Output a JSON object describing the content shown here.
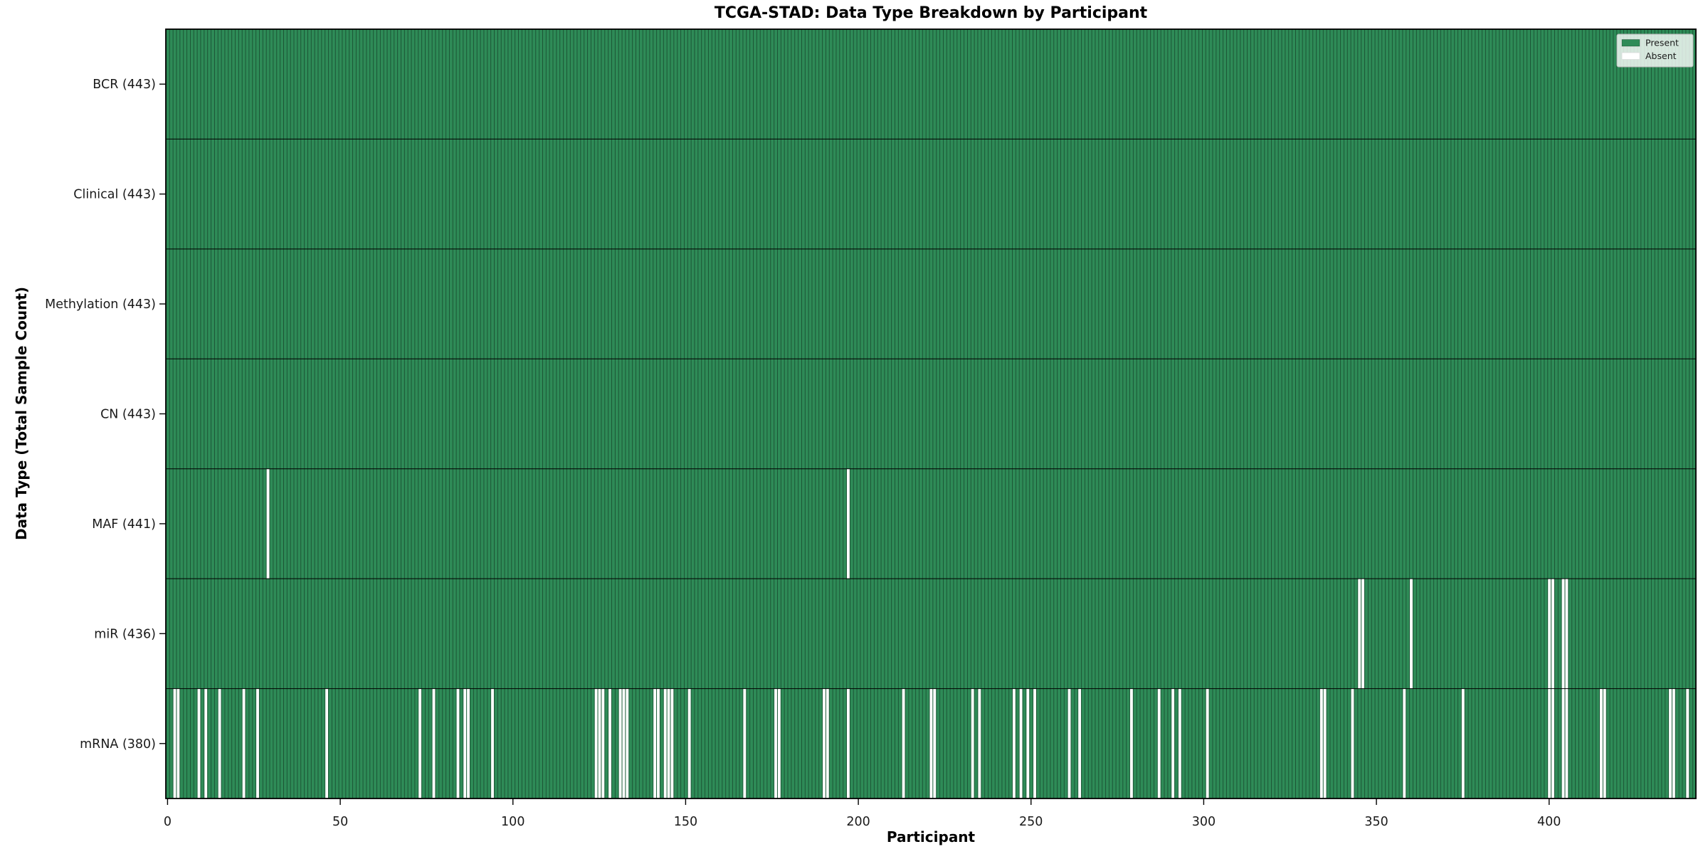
{
  "chart_data": {
    "type": "heatmap",
    "title": "TCGA-STAD: Data Type Breakdown by Participant",
    "xlabel": "Participant",
    "ylabel": "Data Type (Total Sample Count)",
    "n_participants": 443,
    "x_ticks": [
      0,
      50,
      100,
      150,
      200,
      250,
      300,
      350,
      400
    ],
    "legend": [
      {
        "label": "Present",
        "color": "#2e8b57"
      },
      {
        "label": "Absent",
        "color": "#ffffff"
      }
    ],
    "legend_position": "upper right",
    "grid": false,
    "colors": {
      "present": "#2e8b57",
      "absent": "#ffffff",
      "column_edge": "rgba(0,0,0,0.45)",
      "row_divider": "#000000",
      "spine": "#000000",
      "tick_text": "#1a1a1a",
      "legend_border": "#b5b5b5"
    },
    "rows": [
      {
        "label": "BCR (443)",
        "name": "BCR",
        "count": 443,
        "absent": []
      },
      {
        "label": "Clinical (443)",
        "name": "Clinical",
        "count": 443,
        "absent": []
      },
      {
        "label": "Methylation (443)",
        "name": "Methylation",
        "count": 443,
        "absent": []
      },
      {
        "label": "CN (443)",
        "name": "CN",
        "count": 443,
        "absent": []
      },
      {
        "label": "MAF (441)",
        "name": "MAF",
        "count": 441,
        "absent": [
          29,
          197
        ]
      },
      {
        "label": "miR (436)",
        "name": "miR",
        "count": 436,
        "absent": [
          345,
          346,
          360,
          400,
          401,
          404,
          405
        ]
      },
      {
        "label": "mRNA (380)",
        "name": "mRNA",
        "count": 380,
        "absent": [
          2,
          3,
          9,
          11,
          15,
          22,
          26,
          46,
          73,
          77,
          84,
          86,
          87,
          94,
          124,
          125,
          126,
          128,
          131,
          132,
          133,
          141,
          142,
          144,
          145,
          146,
          151,
          167,
          176,
          177,
          190,
          191,
          197,
          213,
          221,
          222,
          233,
          235,
          245,
          247,
          249,
          251,
          261,
          264,
          279,
          287,
          291,
          293,
          301,
          334,
          335,
          343,
          358,
          375,
          400,
          401,
          404,
          405,
          415,
          416,
          435,
          436,
          440
        ]
      }
    ]
  }
}
